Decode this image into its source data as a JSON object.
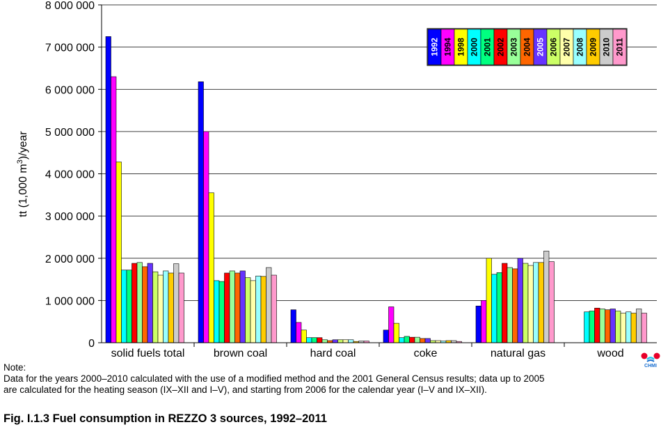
{
  "chart_data": {
    "type": "bar",
    "ylabel": "tt (1,000 m3)/year",
    "ylim": [
      0,
      8000000
    ],
    "yticks": [
      {
        "v": 0,
        "label": "0"
      },
      {
        "v": 1000000,
        "label": "1 000 000"
      },
      {
        "v": 2000000,
        "label": "2 000 000"
      },
      {
        "v": 3000000,
        "label": "3 000 000"
      },
      {
        "v": 4000000,
        "label": "4 000 000"
      },
      {
        "v": 5000000,
        "label": "5 000 000"
      },
      {
        "v": 6000000,
        "label": "6 000 000"
      },
      {
        "v": 7000000,
        "label": "7 000 000"
      },
      {
        "v": 8000000,
        "label": "8 000 000"
      }
    ],
    "grid": true,
    "legend_position": "top-right",
    "categories": [
      "solid fuels total",
      "brown coal",
      "hard coal",
      "coke",
      "natural gas",
      "wood"
    ],
    "series": [
      {
        "name": "1992",
        "color": "#0000ff",
        "label_color": "#ffffff",
        "values": [
          7250000,
          6180000,
          780000,
          300000,
          870000,
          null
        ]
      },
      {
        "name": "1994",
        "color": "#ff00ff",
        "label_color": "#000000",
        "values": [
          6300000,
          5000000,
          480000,
          850000,
          1000000,
          null
        ]
      },
      {
        "name": "1998",
        "color": "#ffff00",
        "label_color": "#000000",
        "values": [
          4280000,
          3550000,
          300000,
          460000,
          2000000,
          null
        ]
      },
      {
        "name": "2000",
        "color": "#00ffff",
        "label_color": "#000000",
        "values": [
          1720000,
          1470000,
          120000,
          120000,
          1620000,
          730000
        ]
      },
      {
        "name": "2001",
        "color": "#00ff80",
        "label_color": "#000000",
        "values": [
          1720000,
          1450000,
          120000,
          150000,
          1660000,
          750000
        ]
      },
      {
        "name": "2002",
        "color": "#ff0000",
        "label_color": "#000000",
        "values": [
          1880000,
          1650000,
          120000,
          130000,
          1880000,
          820000
        ]
      },
      {
        "name": "2003",
        "color": "#99ff99",
        "label_color": "#000000",
        "values": [
          1900000,
          1700000,
          70000,
          130000,
          1780000,
          800000
        ]
      },
      {
        "name": "2004",
        "color": "#ff6600",
        "label_color": "#000000",
        "values": [
          1800000,
          1650000,
          50000,
          100000,
          1750000,
          780000
        ]
      },
      {
        "name": "2005",
        "color": "#6633ff",
        "label_color": "#ffffff",
        "values": [
          1880000,
          1700000,
          70000,
          100000,
          2000000,
          800000
        ]
      },
      {
        "name": "2006",
        "color": "#ccff66",
        "label_color": "#000000",
        "values": [
          1680000,
          1540000,
          70000,
          50000,
          1880000,
          750000
        ]
      },
      {
        "name": "2007",
        "color": "#ffffaa",
        "label_color": "#000000",
        "values": [
          1600000,
          1470000,
          70000,
          50000,
          1830000,
          700000
        ]
      },
      {
        "name": "2008",
        "color": "#99ffff",
        "label_color": "#000000",
        "values": [
          1700000,
          1580000,
          70000,
          40000,
          1900000,
          730000
        ]
      },
      {
        "name": "2009",
        "color": "#ffcc00",
        "label_color": "#000000",
        "values": [
          1650000,
          1570000,
          30000,
          50000,
          1900000,
          700000
        ]
      },
      {
        "name": "2010",
        "color": "#cccccc",
        "label_color": "#000000",
        "values": [
          1870000,
          1780000,
          40000,
          50000,
          2170000,
          800000
        ]
      },
      {
        "name": "2011",
        "color": "#ff99cc",
        "label_color": "#000000",
        "values": [
          1650000,
          1600000,
          40000,
          30000,
          1920000,
          700000
        ]
      }
    ]
  },
  "note": {
    "heading": "Note:",
    "line1": "Data for the years 2000–2010 calculated with the use of a modified method and the 2001 General Census results; data up to 2005",
    "line2": "are calculated for the heating season (IX–XII and I–V), and starting from 2006 for the calendar year (I–V and IX–XII)."
  },
  "caption": "Fig. I.1.3  Fuel consumption in REZZO 3 sources, 1992–2011",
  "logo": {
    "text": "CHMI",
    "color_red": "#e8002a",
    "color_blue": "#1a6fd0",
    "color_cyan": "#2ac8e8"
  }
}
